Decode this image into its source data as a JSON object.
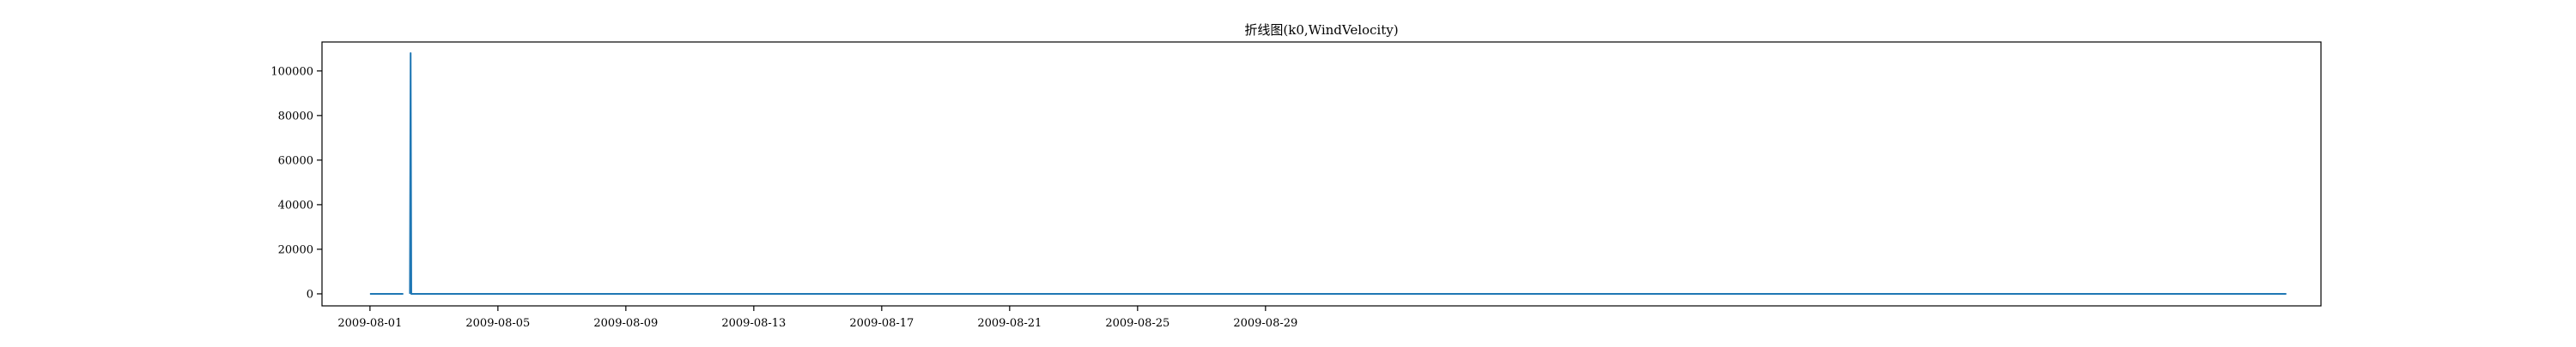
{
  "chart_data": {
    "type": "line",
    "title": "折线图(k0,WindVelocity)",
    "xlabel": "",
    "ylabel": "",
    "x_ticks": [
      "2009-08-01",
      "2009-08-05",
      "2009-08-09",
      "2009-08-13",
      "2009-08-17",
      "2009-08-21",
      "2009-08-25",
      "2009-08-29"
    ],
    "y_ticks": [
      0,
      20000,
      40000,
      60000,
      80000,
      100000
    ],
    "xlim": [
      "2009-07-30T12:00",
      "2009-10-01T00:00"
    ],
    "ylim": [
      -5400,
      113000
    ],
    "grid": false,
    "series": [
      {
        "color": "#1f77b4",
        "points": [
          [
            "2009-08-01T00:00",
            5
          ],
          [
            "2009-08-02T00:00",
            5
          ],
          [
            "2009-08-02T01:00",
            5
          ],
          [
            "2009-08-02T01:00",
            null
          ],
          [
            "2009-08-02T06:00",
            5
          ],
          [
            "2009-08-02T06:30",
            108000
          ],
          [
            "2009-08-02T07:00",
            5
          ],
          [
            "2009-08-05T00:00",
            5
          ],
          [
            "2009-08-10T00:00",
            5
          ],
          [
            "2009-08-15T00:00",
            5
          ],
          [
            "2009-08-20T00:00",
            5
          ],
          [
            "2009-08-25T00:00",
            5
          ],
          [
            "2009-08-30T00:00",
            5
          ],
          [
            "2009-09-29T22:00",
            5
          ]
        ]
      }
    ]
  }
}
